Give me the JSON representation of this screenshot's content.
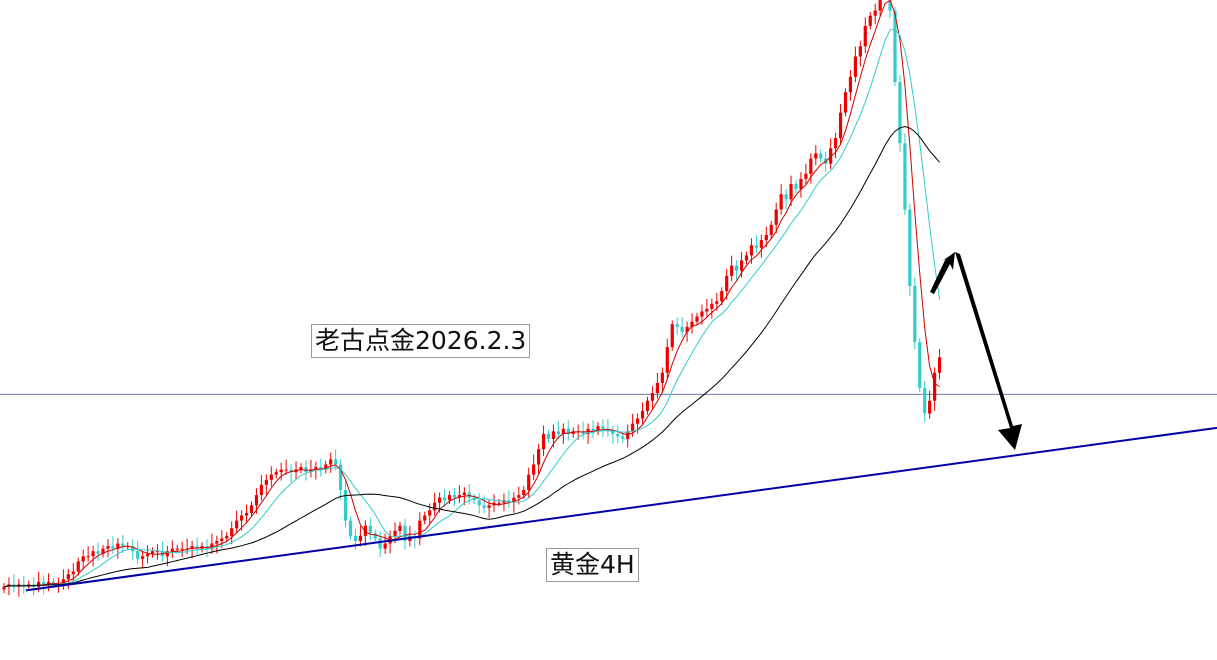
{
  "chart_data": {
    "type": "candlestick",
    "timeframe": "4H",
    "annotations": {
      "title_note": "老古点金2026.2.3",
      "symbol_note": "黄金4H"
    },
    "price_range": [
      0,
      100
    ],
    "closes": [
      2,
      3,
      2,
      3,
      2,
      3,
      2,
      4,
      3,
      4,
      3,
      3,
      5,
      7,
      8,
      12,
      14,
      14,
      16,
      15,
      17,
      18,
      17,
      19,
      18,
      18,
      16,
      13,
      14,
      15,
      16,
      16,
      14,
      16,
      17,
      17,
      17,
      17,
      18,
      17,
      18,
      17,
      19,
      20,
      21,
      22,
      25,
      28,
      30,
      31,
      34,
      38,
      42,
      44,
      46,
      47,
      48,
      48,
      47,
      48,
      49,
      47,
      48,
      49,
      48,
      50,
      52,
      50,
      40,
      28,
      22,
      20,
      22,
      26,
      23,
      21,
      17,
      19,
      22,
      24,
      26,
      20,
      22,
      21,
      28,
      30,
      32,
      35,
      37,
      36,
      38,
      37,
      38,
      39,
      37,
      36,
      34,
      33,
      34,
      35,
      35,
      36,
      35,
      37,
      38,
      40,
      46,
      50,
      56,
      62,
      60,
      63,
      62,
      64,
      62,
      63,
      63,
      62,
      64,
      63,
      65,
      64,
      63,
      62,
      61,
      60,
      63,
      66,
      68,
      71,
      75,
      78,
      82,
      86,
      96,
      105,
      104,
      102,
      104,
      106,
      108,
      110,
      111,
      113,
      114,
      118,
      124,
      128,
      126,
      130,
      132,
      136,
      135,
      138,
      140,
      144,
      150,
      156,
      154,
      160,
      158,
      162,
      164,
      170,
      172,
      170,
      168,
      174,
      178,
      188,
      196,
      202,
      210,
      214,
      222,
      226,
      228,
      238,
      240,
      228,
      200,
      176,
      150,
      120,
      98,
      80,
      70,
      75,
      86,
      92
    ],
    "moving_averages": [
      {
        "period": 5,
        "color": "#cc0000"
      },
      {
        "period": 10,
        "color": "#33cccc"
      },
      {
        "period": 30,
        "color": "#000000"
      }
    ],
    "reference_line_price": 77.5,
    "trendline": {
      "start_index": 2,
      "start_price": 0,
      "end_index": 187,
      "end_price": 49
    },
    "projection_arrows": [
      {
        "direction": "up",
        "color": "#000000"
      },
      {
        "direction": "down",
        "color": "#000000"
      }
    ],
    "colors": {
      "up": "#ee0000",
      "down": "#33cccc",
      "trendline": "#0000aa",
      "reference_line": "#6c7aa6",
      "background": "#ffffff"
    }
  }
}
